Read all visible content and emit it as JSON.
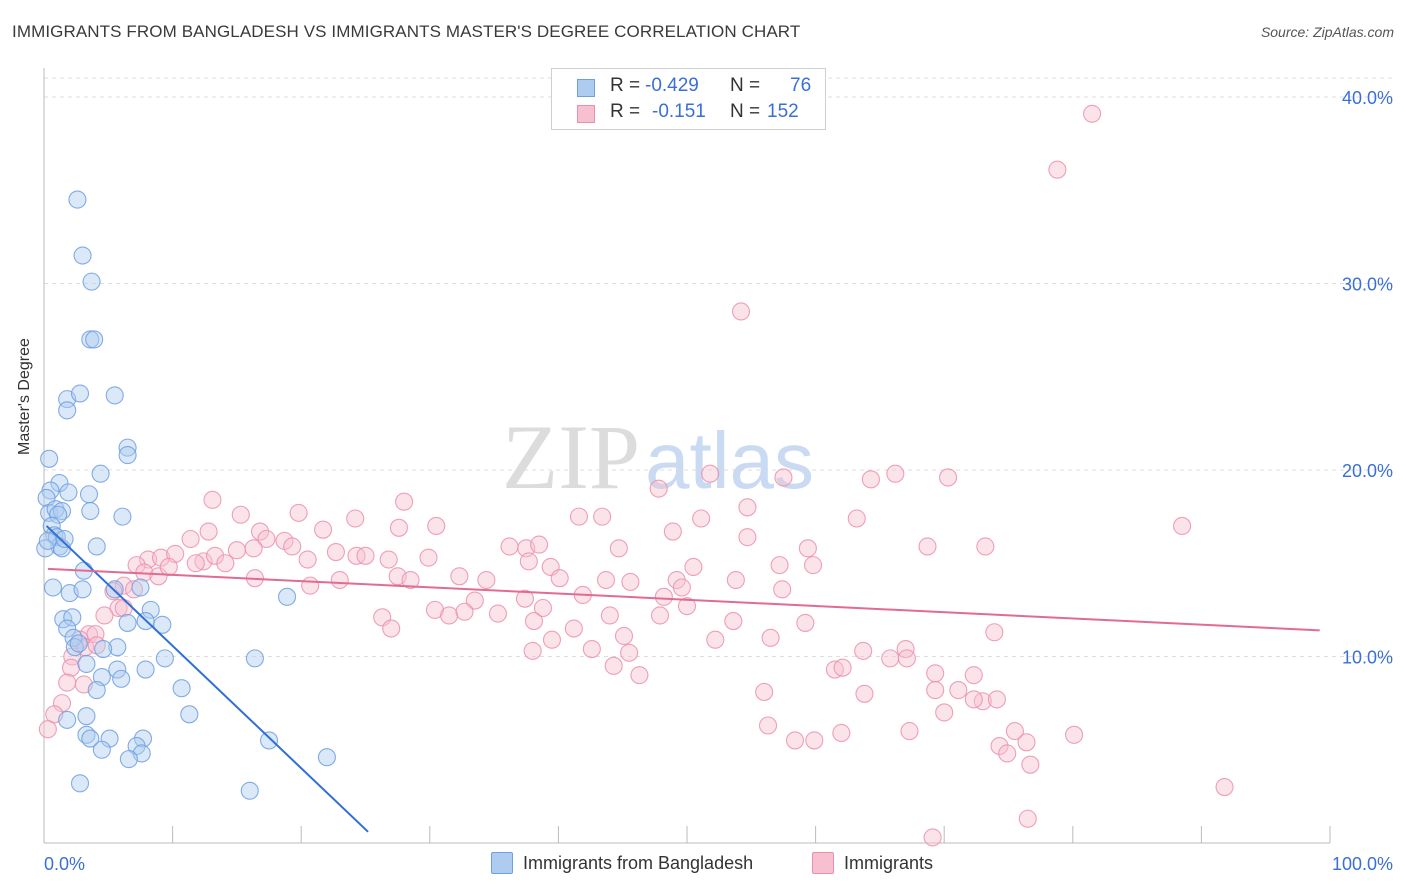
{
  "title": "IMMIGRANTS FROM BANGLADESH VS IMMIGRANTS MASTER'S DEGREE CORRELATION CHART",
  "source": "Source: ZipAtlas.com",
  "watermark": {
    "zip": "ZIP",
    "atlas": "atlas"
  },
  "legend": {
    "rows": [
      {
        "r_label": "R =",
        "r_value": "-0.429",
        "n_label": "N =",
        "n_value": "76",
        "fill": "#aecbf0",
        "stroke": "#6e9fe0"
      },
      {
        "r_label": "R =",
        "r_value": "-0.151",
        "n_label": "N =",
        "n_value": "152",
        "fill": "#f7c0d0",
        "stroke": "#ec8fab"
      }
    ]
  },
  "bottom_legend": {
    "series1": "Immigrants from Bangladesh",
    "series2": "Immigrants"
  },
  "chart_data": {
    "type": "scatter",
    "title": "IMMIGRANTS FROM BANGLADESH VS IMMIGRANTS MASTER'S DEGREE CORRELATION CHART",
    "xlabel": "",
    "ylabel": "Master's Degree",
    "xlim": [
      0,
      100
    ],
    "ylim": [
      0,
      40
    ],
    "x_tick_labels": [
      "0.0%",
      "100.0%"
    ],
    "y_ticks": [
      10,
      20,
      30,
      40
    ],
    "y_tick_labels": [
      "10.0%",
      "20.0%",
      "30.0%",
      "40.0%"
    ],
    "grid": true,
    "legend_position": "top-center",
    "series": [
      {
        "name": "Immigrants from Bangladesh",
        "color": "#6e9fe0",
        "fill": "#aecbf0",
        "trend": {
          "x": [
            0.2,
            25.2
          ],
          "y": [
            17.0,
            0.6
          ]
        },
        "points": [
          [
            2.6,
            34.5
          ],
          [
            3.0,
            31.5
          ],
          [
            3.7,
            30.1
          ],
          [
            3.6,
            27.0
          ],
          [
            3.9,
            27.0
          ],
          [
            1.8,
            23.8
          ],
          [
            2.8,
            24.1
          ],
          [
            5.5,
            24.0
          ],
          [
            1.8,
            23.2
          ],
          [
            6.5,
            21.2
          ],
          [
            0.4,
            20.6
          ],
          [
            6.5,
            20.8
          ],
          [
            4.4,
            19.8
          ],
          [
            1.2,
            19.3
          ],
          [
            0.5,
            18.9
          ],
          [
            1.9,
            18.8
          ],
          [
            3.5,
            18.7
          ],
          [
            0.2,
            18.5
          ],
          [
            0.4,
            17.7
          ],
          [
            0.9,
            17.9
          ],
          [
            1.4,
            17.8
          ],
          [
            3.6,
            17.8
          ],
          [
            1.1,
            17.6
          ],
          [
            6.1,
            17.5
          ],
          [
            0.6,
            17.0
          ],
          [
            0.8,
            16.5
          ],
          [
            1.0,
            16.4
          ],
          [
            1.2,
            15.9
          ],
          [
            1.4,
            15.8
          ],
          [
            0.1,
            15.8
          ],
          [
            4.1,
            15.9
          ],
          [
            3.1,
            14.6
          ],
          [
            0.7,
            13.7
          ],
          [
            2.0,
            13.4
          ],
          [
            3.0,
            13.6
          ],
          [
            7.5,
            13.7
          ],
          [
            5.5,
            13.6
          ],
          [
            18.9,
            13.2
          ],
          [
            1.5,
            12.0
          ],
          [
            2.2,
            12.1
          ],
          [
            8.3,
            12.5
          ],
          [
            6.5,
            11.8
          ],
          [
            1.8,
            11.5
          ],
          [
            7.9,
            11.9
          ],
          [
            9.2,
            11.7
          ],
          [
            2.3,
            11.0
          ],
          [
            2.4,
            10.5
          ],
          [
            2.7,
            10.7
          ],
          [
            5.7,
            10.5
          ],
          [
            4.6,
            10.4
          ],
          [
            9.4,
            9.9
          ],
          [
            16.4,
            9.9
          ],
          [
            3.3,
            9.6
          ],
          [
            5.7,
            9.3
          ],
          [
            7.9,
            9.3
          ],
          [
            4.5,
            8.9
          ],
          [
            6.0,
            8.8
          ],
          [
            10.7,
            8.3
          ],
          [
            4.1,
            8.2
          ],
          [
            11.3,
            6.9
          ],
          [
            1.8,
            6.6
          ],
          [
            3.3,
            6.8
          ],
          [
            3.3,
            5.8
          ],
          [
            5.1,
            5.6
          ],
          [
            7.7,
            5.6
          ],
          [
            17.5,
            5.5
          ],
          [
            3.6,
            5.6
          ],
          [
            7.2,
            5.2
          ],
          [
            4.5,
            5.0
          ],
          [
            7.6,
            4.8
          ],
          [
            22.0,
            4.6
          ],
          [
            6.6,
            4.5
          ],
          [
            2.8,
            3.2
          ],
          [
            16.0,
            2.8
          ],
          [
            0.3,
            16.2
          ],
          [
            1.6,
            16.3
          ]
        ]
      },
      {
        "name": "Immigrants",
        "color": "#ec8fab",
        "fill": "#f7c0d0",
        "trend": {
          "x": [
            0.3,
            99.2
          ],
          "y": [
            14.7,
            11.4
          ]
        },
        "points": [
          [
            81.5,
            39.1
          ],
          [
            78.8,
            36.1
          ],
          [
            54.2,
            28.5
          ],
          [
            51.8,
            19.8
          ],
          [
            57.5,
            19.6
          ],
          [
            64.3,
            19.5
          ],
          [
            66.2,
            19.8
          ],
          [
            70.3,
            19.6
          ],
          [
            47.8,
            19.0
          ],
          [
            13.1,
            18.4
          ],
          [
            28.0,
            18.3
          ],
          [
            15.3,
            17.6
          ],
          [
            19.8,
            17.7
          ],
          [
            16.8,
            16.7
          ],
          [
            24.2,
            17.4
          ],
          [
            41.6,
            17.5
          ],
          [
            43.4,
            17.5
          ],
          [
            51.1,
            17.4
          ],
          [
            54.7,
            18.0
          ],
          [
            63.2,
            17.4
          ],
          [
            88.5,
            17.0
          ],
          [
            12.8,
            16.7
          ],
          [
            18.7,
            16.2
          ],
          [
            21.7,
            16.8
          ],
          [
            27.6,
            16.9
          ],
          [
            30.5,
            17.0
          ],
          [
            48.9,
            16.7
          ],
          [
            54.7,
            16.4
          ],
          [
            11.4,
            16.3
          ],
          [
            17.3,
            16.3
          ],
          [
            19.3,
            15.9
          ],
          [
            15.0,
            15.7
          ],
          [
            16.3,
            15.8
          ],
          [
            22.7,
            15.6
          ],
          [
            24.3,
            15.4
          ],
          [
            25.0,
            15.4
          ],
          [
            29.9,
            15.3
          ],
          [
            36.2,
            15.9
          ],
          [
            37.5,
            15.8
          ],
          [
            38.5,
            16.0
          ],
          [
            44.7,
            15.8
          ],
          [
            59.4,
            15.8
          ],
          [
            68.7,
            15.9
          ],
          [
            73.2,
            15.9
          ],
          [
            12.4,
            15.1
          ],
          [
            13.3,
            15.4
          ],
          [
            8.1,
            15.2
          ],
          [
            9.1,
            15.3
          ],
          [
            10.2,
            15.5
          ],
          [
            11.8,
            15.0
          ],
          [
            14.1,
            15.0
          ],
          [
            20.5,
            15.2
          ],
          [
            26.8,
            15.2
          ],
          [
            37.7,
            15.1
          ],
          [
            39.4,
            14.8
          ],
          [
            50.5,
            14.8
          ],
          [
            57.2,
            14.9
          ],
          [
            59.8,
            14.9
          ],
          [
            7.2,
            14.9
          ],
          [
            7.8,
            14.5
          ],
          [
            8.9,
            14.3
          ],
          [
            9.7,
            14.8
          ],
          [
            16.4,
            14.2
          ],
          [
            20.7,
            13.8
          ],
          [
            23.0,
            14.1
          ],
          [
            27.5,
            14.3
          ],
          [
            28.5,
            14.1
          ],
          [
            32.3,
            14.3
          ],
          [
            34.4,
            14.1
          ],
          [
            40.1,
            14.2
          ],
          [
            43.7,
            14.1
          ],
          [
            45.6,
            14.0
          ],
          [
            49.2,
            14.1
          ],
          [
            53.8,
            14.1
          ],
          [
            6.2,
            13.8
          ],
          [
            7.0,
            13.6
          ],
          [
            5.4,
            13.5
          ],
          [
            49.6,
            13.7
          ],
          [
            57.4,
            13.6
          ],
          [
            41.9,
            13.3
          ],
          [
            33.5,
            13.0
          ],
          [
            37.4,
            13.1
          ],
          [
            48.2,
            13.2
          ],
          [
            50.0,
            12.7
          ],
          [
            5.8,
            12.6
          ],
          [
            4.7,
            12.2
          ],
          [
            6.2,
            12.6
          ],
          [
            30.4,
            12.5
          ],
          [
            31.5,
            12.2
          ],
          [
            32.7,
            12.4
          ],
          [
            35.3,
            12.3
          ],
          [
            38.8,
            12.6
          ],
          [
            44.0,
            12.2
          ],
          [
            47.9,
            12.2
          ],
          [
            53.6,
            11.9
          ],
          [
            59.2,
            11.8
          ],
          [
            26.3,
            12.1
          ],
          [
            27.0,
            11.5
          ],
          [
            38.1,
            11.9
          ],
          [
            41.2,
            11.5
          ],
          [
            3.5,
            11.2
          ],
          [
            2.8,
            10.9
          ],
          [
            4.0,
            11.2
          ],
          [
            45.1,
            11.1
          ],
          [
            39.5,
            10.9
          ],
          [
            52.2,
            10.9
          ],
          [
            56.5,
            11.0
          ],
          [
            73.9,
            11.3
          ],
          [
            3.2,
            10.5
          ],
          [
            38.0,
            10.3
          ],
          [
            42.6,
            10.4
          ],
          [
            45.5,
            10.2
          ],
          [
            63.7,
            10.3
          ],
          [
            67.0,
            10.4
          ],
          [
            2.2,
            10.0
          ],
          [
            4.1,
            10.6
          ],
          [
            65.8,
            9.9
          ],
          [
            67.1,
            9.9
          ],
          [
            2.1,
            9.4
          ],
          [
            44.3,
            9.5
          ],
          [
            46.3,
            9.0
          ],
          [
            61.5,
            9.3
          ],
          [
            62.1,
            9.4
          ],
          [
            69.3,
            9.1
          ],
          [
            72.3,
            9.0
          ],
          [
            1.8,
            8.6
          ],
          [
            3.1,
            8.5
          ],
          [
            69.3,
            8.2
          ],
          [
            71.1,
            8.2
          ],
          [
            56.0,
            8.1
          ],
          [
            63.8,
            8.0
          ],
          [
            1.4,
            7.5
          ],
          [
            0.8,
            6.9
          ],
          [
            73.0,
            7.6
          ],
          [
            70.0,
            7.0
          ],
          [
            72.3,
            7.7
          ],
          [
            74.1,
            7.7
          ],
          [
            0.3,
            6.1
          ],
          [
            56.3,
            6.3
          ],
          [
            67.3,
            6.0
          ],
          [
            75.5,
            6.0
          ],
          [
            76.4,
            5.4
          ],
          [
            80.1,
            5.8
          ],
          [
            58.4,
            5.5
          ],
          [
            59.9,
            5.5
          ],
          [
            74.3,
            5.2
          ],
          [
            74.9,
            4.8
          ],
          [
            76.7,
            4.2
          ],
          [
            91.8,
            3.0
          ],
          [
            76.5,
            1.3
          ],
          [
            69.1,
            0.3
          ],
          [
            62.0,
            5.9
          ]
        ]
      }
    ]
  }
}
